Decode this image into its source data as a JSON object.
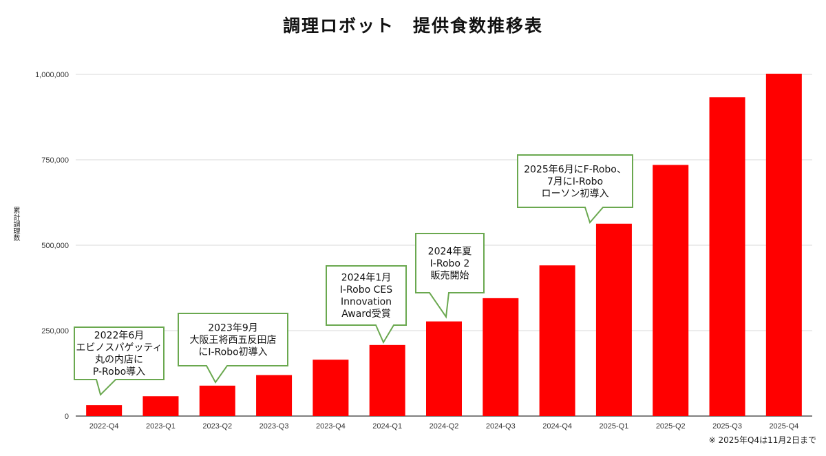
{
  "chart_data": {
    "type": "bar",
    "title": "調理ロボット　提供食数推移表",
    "ylabel": "累計調理数",
    "xlabel": "",
    "categories": [
      "2022-Q4",
      "2023-Q1",
      "2023-Q2",
      "2023-Q3",
      "2023-Q4",
      "2024-Q1",
      "2024-Q2",
      "2024-Q3",
      "2024-Q4",
      "2025-Q1",
      "2025-Q2",
      "2025-Q3",
      "2025-Q4"
    ],
    "values": [
      32000,
      58000,
      89000,
      120000,
      165000,
      208000,
      277000,
      345000,
      441000,
      563000,
      735000,
      933000,
      1002000
    ],
    "ylim": [
      0,
      1000000
    ],
    "yticks": [
      0,
      250000,
      500000,
      750000,
      1000000
    ],
    "ytick_labels": [
      "0",
      "250,000",
      "500,000",
      "750,000",
      "1,000,000"
    ],
    "bar_color": "#ff0000",
    "grid": true,
    "note": "※ 2025年Q4は11月2日まで",
    "annotations": [
      {
        "category": "2022-Q4",
        "lines": [
          "2022年6月",
          "エビノスパゲッティ",
          "丸の内店に",
          "P-Robo導入"
        ]
      },
      {
        "category": "2023-Q2",
        "lines": [
          "2023年9月",
          "大阪王将西五反田店",
          "にI-Robo初導入"
        ]
      },
      {
        "category": "2024-Q1",
        "lines": [
          "2024年1月",
          "I-Robo  CES",
          "Innovation",
          "Award受賞"
        ]
      },
      {
        "category": "2024-Q2",
        "lines": [
          "2024年夏",
          "I-Robo 2",
          "販売開始"
        ]
      },
      {
        "category": "2025-Q1",
        "lines": [
          "2025年6月にF-Robo、",
          "7月にI-Robo",
          "ローソン初導入"
        ]
      }
    ],
    "callout_border_color": "#6aa84f"
  }
}
